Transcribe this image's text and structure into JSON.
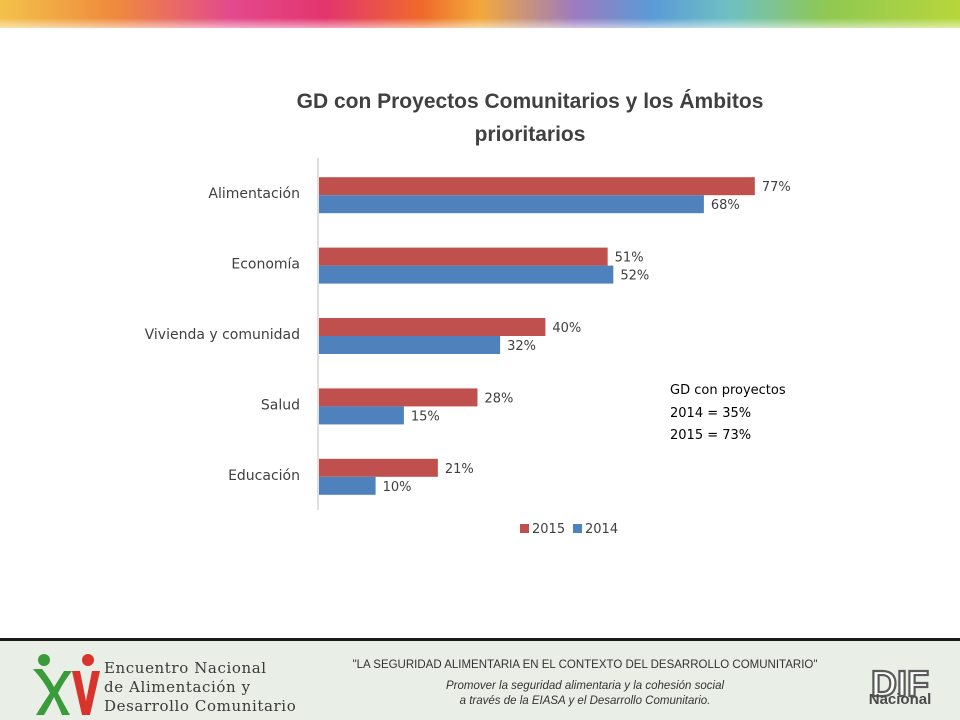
{
  "chart_data": {
    "type": "bar",
    "orientation": "horizontal",
    "title_lines": [
      "GD con Proyectos Comunitarios y los Ámbitos",
      "prioritarios"
    ],
    "categories": [
      "Alimentación",
      "Economía",
      "Vivienda y comunidad",
      "Salud",
      "Educación"
    ],
    "series": [
      {
        "name": "2015",
        "color": "#c0504d",
        "values": [
          77,
          51,
          40,
          28,
          21
        ],
        "labels": [
          "77%",
          "51%",
          "40%",
          "28%",
          "21%"
        ]
      },
      {
        "name": "2014",
        "color": "#4f81bd",
        "values": [
          68,
          52,
          32,
          15,
          10
        ],
        "labels": [
          "68%",
          "52%",
          "32%",
          "15%",
          "10%"
        ]
      }
    ],
    "xlim": [
      0,
      100
    ],
    "xlabel": "",
    "ylabel": "",
    "grid": false,
    "legend_position": "bottom"
  },
  "note": {
    "lines": [
      "GD con proyectos",
      "2014 = 35%",
      "2015 = 73%"
    ]
  },
  "footer": {
    "event_lines": [
      "Encuentro Nacional",
      "de Alimentación y",
      "Desarrollo Comunitario"
    ],
    "slogan": "\"LA SEGURIDAD ALIMENTARIA EN EL CONTEXTO DEL DESARROLLO COMUNITARIO\"",
    "tagline_lines": [
      "Promover la seguridad alimentaria y la cohesión social",
      "a través de la EIASA y el Desarrollo Comunitario."
    ],
    "dif_logo": "DIF",
    "dif_label": "Nacional"
  }
}
